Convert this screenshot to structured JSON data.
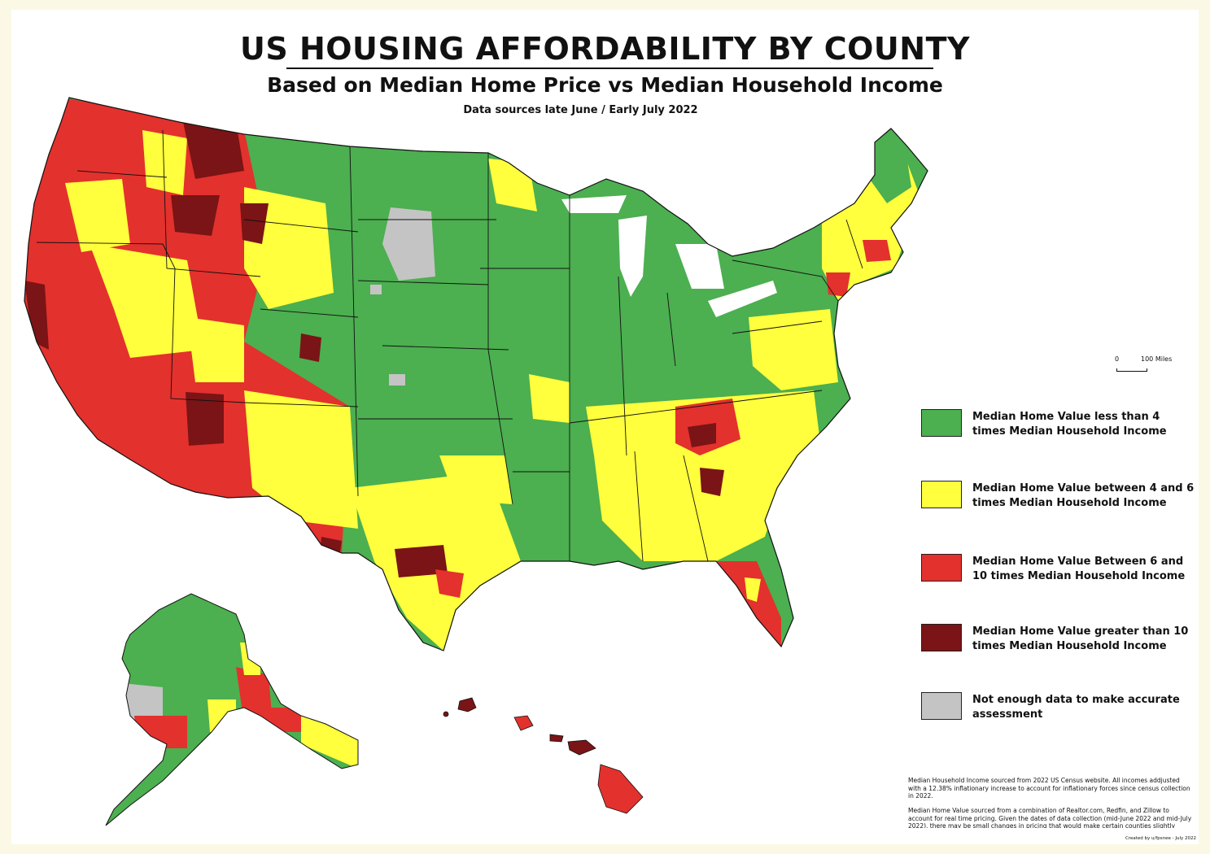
{
  "title": "US HOUSING AFFORDABILITY BY COUNTY",
  "subtitle": "Based on Median Home Price vs Median Household Income",
  "data_sources": "Data sources late June / Early July 2022",
  "colors": {
    "green": "#4caf50",
    "yellow": "#ffff3d",
    "red": "#e3312d",
    "dark_red": "#7a1416",
    "gray": "#c4c4c4",
    "background": "#fbf8e6"
  },
  "scale_bar": {
    "zero": "0",
    "end": "100 Miles"
  },
  "legend": [
    {
      "label": "Median Home Value less than 4 times Median Household Income",
      "color": "#4caf50"
    },
    {
      "label": "Median Home Value between 4 and 6 times Median Household Income",
      "color": "#ffff3d"
    },
    {
      "label": "Median Home Value Between 6 and 10 times Median Household Income",
      "color": "#e3312d"
    },
    {
      "label": "Median Home Value greater than 10 times Median Household Income",
      "color": "#7a1416"
    },
    {
      "label": "Not enough data to make accurate assessment",
      "color": "#c4c4c4"
    }
  ],
  "notes": {
    "income": "Median Household Income sourced from 2022 US Census website.  All incomes addjusted with a 12.38% inflationary increase to account for inflationary forces since census collection in 2022.",
    "home_value": "Median Home Value sourced from a combination of Realtor.com, Redfin, and Zillow to account for real time pricing.  Given the dates of data collection (mid-June 2022 and mid-July 2022), there may be small changes in pricing that would make certain counties slightly"
  },
  "credit": "Created by u/fpsnee - July 2022"
}
